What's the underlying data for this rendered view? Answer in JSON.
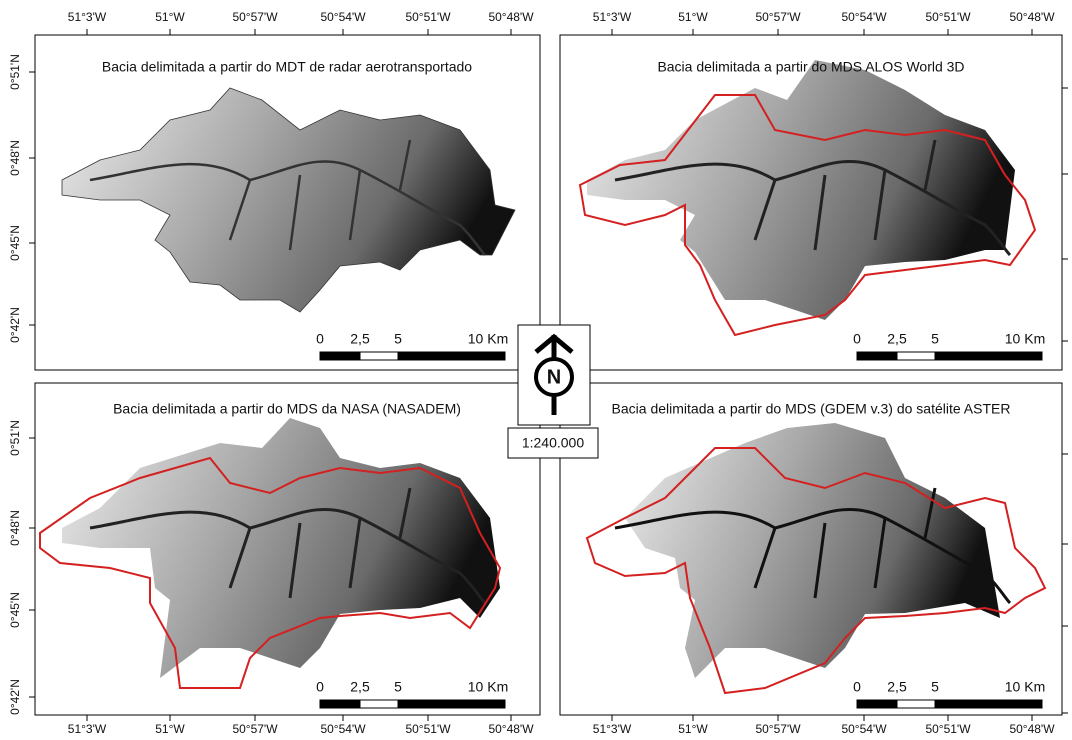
{
  "panels": [
    {
      "title": "Bacia delimitada a partir do MDT de radar aerotransportado"
    },
    {
      "title": "Bacia delimitada a partir do MDS ALOS World 3D"
    },
    {
      "title": "Bacia delimitada a partir do MDS da NASA (NASADEM)"
    },
    {
      "title": "Bacia delimitada a partir do MDS (GDEM v.3) do satélite ASTER"
    }
  ],
  "longitude_labels": [
    "51°3'W",
    "51°W",
    "50°57'W",
    "50°54'W",
    "50°51'W",
    "50°48'W"
  ],
  "latitude_labels": [
    "0°51'N",
    "0°48'N",
    "0°45'N",
    "0°42'N"
  ],
  "scale_bar_labels": [
    "0",
    "2,5",
    "5",
    "10 Km"
  ],
  "north_label": "N",
  "scale_text": "1:240.000"
}
